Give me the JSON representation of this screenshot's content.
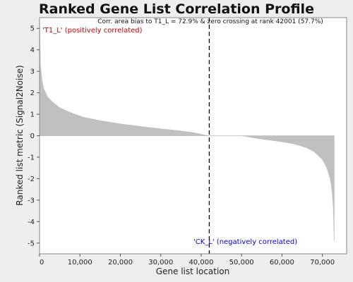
{
  "chart_data": {
    "type": "area",
    "title": "Ranked Gene List Correlation Profile",
    "xlabel": "Gene list location",
    "ylabel": "Ranked list metric (Signal2Noise)",
    "xlim": [
      0,
      76000
    ],
    "ylim": [
      -5.5,
      5.5
    ],
    "x_ticks": [
      0,
      10000,
      20000,
      30000,
      40000,
      50000,
      60000,
      70000
    ],
    "x_tick_labels": [
      "0",
      "10,000",
      "20,000",
      "30,000",
      "40,000",
      "50,000",
      "60,000",
      "70,000"
    ],
    "y_ticks": [
      5,
      4,
      3,
      2,
      1,
      0,
      -1,
      -2,
      -3,
      -4,
      -5
    ],
    "y_tick_labels": [
      "5",
      "4",
      "3",
      "2",
      "1",
      "0",
      "-1",
      "-2",
      "-3",
      "-4",
      "-5"
    ],
    "grid": false,
    "fill_color": "#c0c0c0",
    "x": [
      0,
      200,
      600,
      1000,
      2000,
      3000,
      5000,
      8000,
      11000,
      15000,
      20000,
      25000,
      30000,
      35000,
      38000,
      40000,
      41000,
      42000,
      50000,
      51000,
      53000,
      56000,
      60000,
      63000,
      66000,
      68000,
      70000,
      71000,
      71800,
      72200,
      72500,
      72700,
      72800,
      72900
    ],
    "values": [
      5.5,
      3.3,
      2.6,
      2.2,
      1.8,
      1.6,
      1.3,
      1.05,
      0.85,
      0.7,
      0.55,
      0.43,
      0.32,
      0.22,
      0.14,
      0.07,
      0.02,
      0.0,
      0.0,
      -0.03,
      -0.1,
      -0.18,
      -0.28,
      -0.38,
      -0.55,
      -0.75,
      -1.1,
      -1.45,
      -1.9,
      -2.3,
      -2.8,
      -3.3,
      -4.0,
      -4.9
    ],
    "zero_crossing_rank": 42001,
    "note": "Corr. area bias to T1_L = 72.9% & zero crossing at rank 42001 (57.7%)",
    "positive_label": "'T1_L' (positively correlated)",
    "negative_label": "'CK_L' (negatively correlated)",
    "positive_color": "#cc0000",
    "negative_color": "#0000cc"
  }
}
